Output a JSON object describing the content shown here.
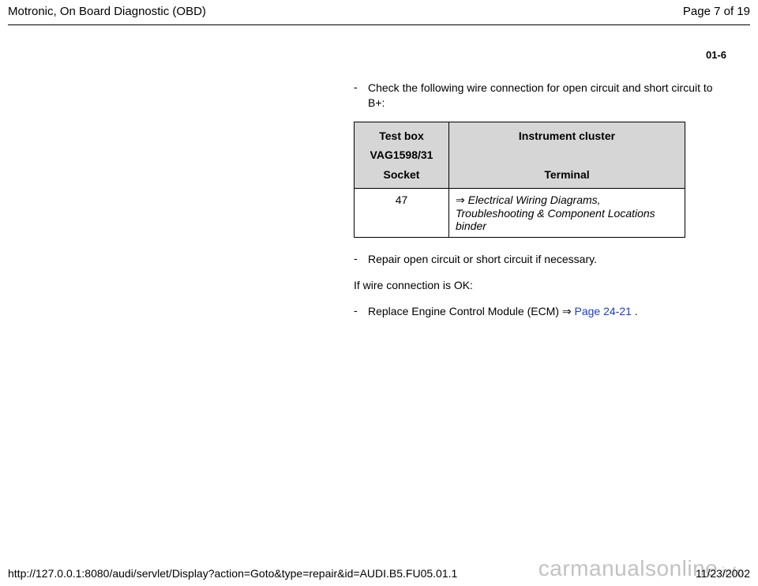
{
  "header": {
    "title": "Motronic, On Board Diagnostic (OBD)",
    "page_indicator": "Page 7 of 19"
  },
  "page_label": "01-6",
  "content": {
    "bullet1": "Check the following wire connection for open circuit and short circuit to B+:",
    "table": {
      "head_left_line1": "Test box",
      "head_left_line2": "VAG1598/31",
      "head_left_line3": "Socket",
      "head_right_line1": "Instrument cluster",
      "head_right_line2": "Terminal",
      "row1_socket": "47",
      "row1_terminal_prefix": "⇒ ",
      "row1_terminal_text": "Electrical Wiring Diagrams, Troubleshooting & Component Locations binder"
    },
    "bullet2": "Repair open circuit or short circuit if necessary.",
    "plain1": "If wire connection is OK:",
    "bullet3_pre": "Replace Engine Control Module (ECM) ",
    "bullet3_arrow": "⇒ ",
    "bullet3_link": "Page 24-21",
    "bullet3_post": " ."
  },
  "footer": {
    "url": "http://127.0.0.1:8080/audi/servlet/Display?action=Goto&type=repair&id=AUDI.B5.FU05.01.1",
    "date": "11/23/2002"
  },
  "watermark": {
    "main": "carmanualsonline",
    "suffix": ".info"
  }
}
